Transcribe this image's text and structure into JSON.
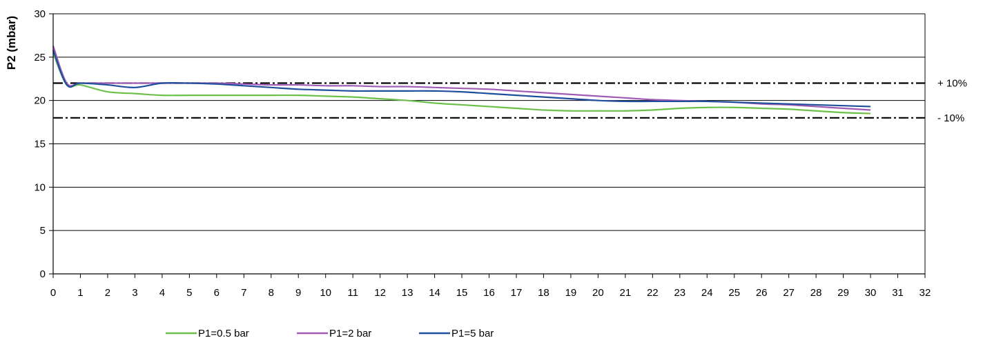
{
  "chart_data": {
    "type": "line",
    "title": "",
    "xlabel": "",
    "ylabel": "P2 (mbar)",
    "xlim": [
      0,
      32
    ],
    "ylim": [
      0,
      30
    ],
    "x_ticks": [
      0,
      1,
      2,
      3,
      4,
      5,
      6,
      7,
      8,
      9,
      10,
      11,
      12,
      13,
      14,
      15,
      16,
      17,
      18,
      19,
      20,
      21,
      22,
      23,
      24,
      25,
      26,
      27,
      28,
      29,
      30,
      31,
      32
    ],
    "y_ticks": [
      0,
      5,
      10,
      15,
      20,
      25,
      30
    ],
    "grid": "horizontal",
    "legend_position": "bottom",
    "reference_lines": [
      {
        "label": "+ 10%",
        "y": 22
      },
      {
        "label": "- 10%",
        "y": 18
      }
    ],
    "series": [
      {
        "name": "P1=0.5 bar",
        "color": "#6cc04a",
        "x": [
          0,
          0.5,
          1,
          2,
          3,
          4,
          5,
          6,
          7,
          8,
          9,
          10,
          11,
          12,
          13,
          14,
          15,
          16,
          17,
          18,
          19,
          20,
          21,
          22,
          23,
          24,
          25,
          26,
          27,
          28,
          29,
          30
        ],
        "y": [
          25.5,
          21.8,
          21.8,
          21.0,
          20.8,
          20.6,
          20.6,
          20.6,
          20.6,
          20.6,
          20.6,
          20.5,
          20.4,
          20.2,
          20.0,
          19.7,
          19.5,
          19.3,
          19.1,
          18.9,
          18.8,
          18.8,
          18.8,
          18.9,
          19.1,
          19.2,
          19.2,
          19.1,
          19.0,
          18.8,
          18.6,
          18.5
        ]
      },
      {
        "name": "P1=2 bar",
        "color": "#a05cb4",
        "x": [
          0,
          0.5,
          1,
          2,
          3,
          4,
          5,
          6,
          7,
          8,
          9,
          10,
          11,
          12,
          13,
          14,
          15,
          16,
          17,
          18,
          19,
          20,
          21,
          22,
          23,
          24,
          25,
          26,
          27,
          28,
          29,
          30
        ],
        "y": [
          26.3,
          22.0,
          22.0,
          22.0,
          22.0,
          22.0,
          22.0,
          22.0,
          21.9,
          21.8,
          21.8,
          21.7,
          21.7,
          21.6,
          21.6,
          21.5,
          21.4,
          21.3,
          21.1,
          20.9,
          20.7,
          20.5,
          20.3,
          20.1,
          20.0,
          19.9,
          19.8,
          19.6,
          19.5,
          19.3,
          19.1,
          18.9
        ]
      },
      {
        "name": "P1=5 bar",
        "color": "#1f4e9e",
        "x": [
          0,
          0.5,
          1,
          2,
          3,
          4,
          5,
          6,
          7,
          8,
          9,
          10,
          11,
          12,
          13,
          14,
          15,
          16,
          17,
          18,
          19,
          20,
          21,
          22,
          23,
          24,
          25,
          26,
          27,
          28,
          29,
          30
        ],
        "y": [
          25.8,
          21.8,
          22.0,
          21.8,
          21.5,
          22.0,
          22.0,
          21.9,
          21.7,
          21.5,
          21.3,
          21.2,
          21.1,
          21.1,
          21.1,
          21.1,
          21.0,
          20.8,
          20.6,
          20.4,
          20.2,
          20.0,
          19.9,
          19.9,
          19.9,
          19.9,
          19.8,
          19.7,
          19.6,
          19.5,
          19.4,
          19.3
        ]
      }
    ]
  }
}
